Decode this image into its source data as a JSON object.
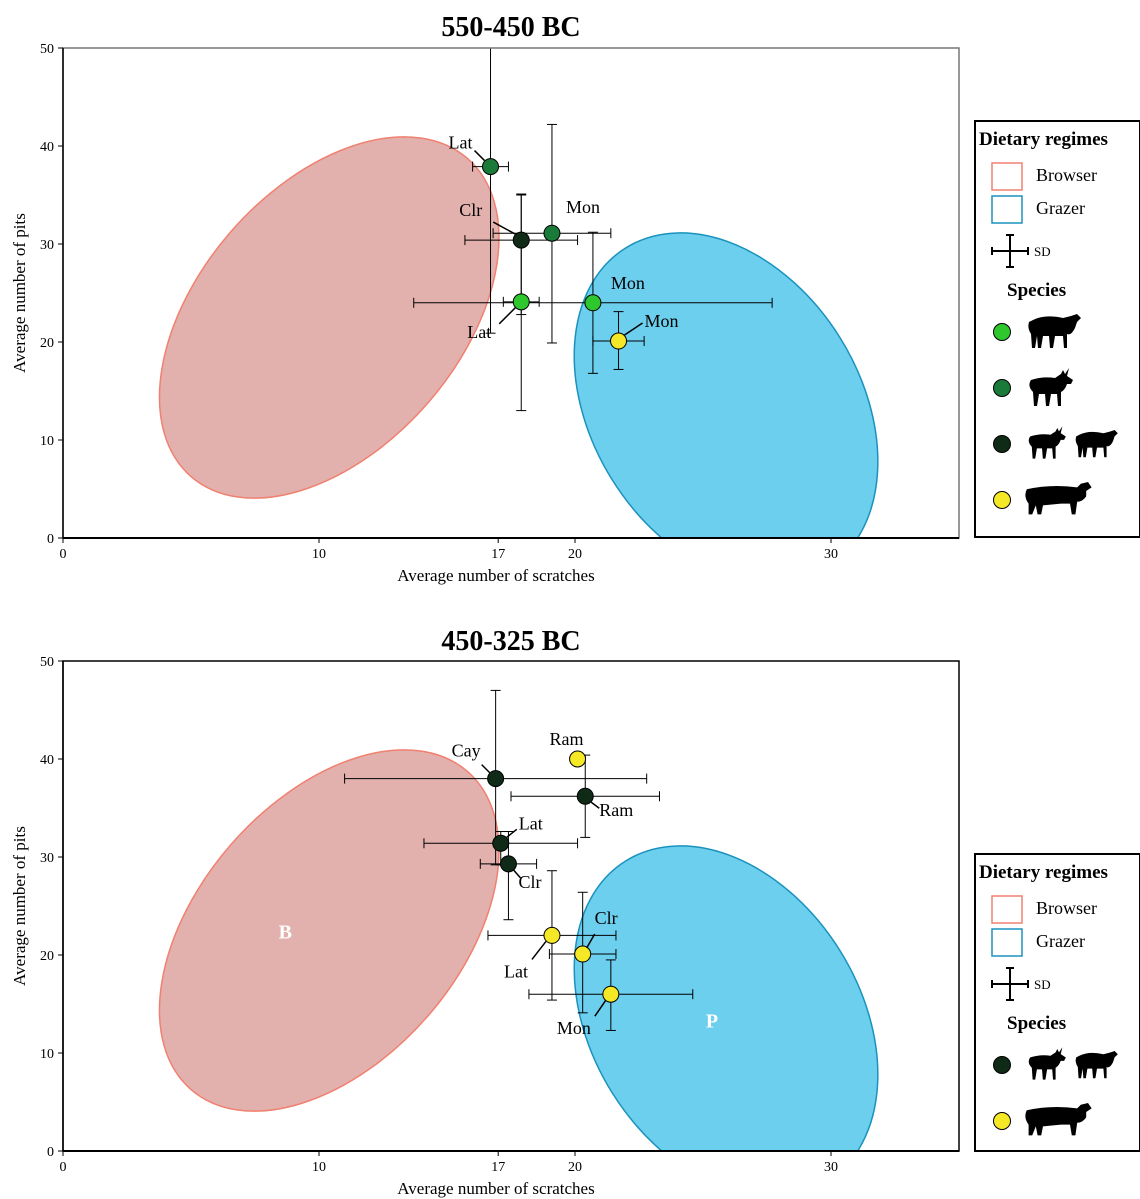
{
  "chart_data": [
    {
      "type": "scatter",
      "title": "550-450 BC",
      "xlabel": "Average number of scratches",
      "ylabel": "Average number of pits",
      "xlim": [
        0,
        35
      ],
      "ylim": [
        0,
        50
      ],
      "xticks": [
        0,
        10,
        17,
        20,
        30
      ],
      "yticks": [
        0,
        10,
        20,
        30,
        40,
        50
      ],
      "regions": [
        {
          "name": "Browser",
          "color": "#f08070",
          "fill": "#e3b1ad",
          "cx": 10.4,
          "cy": 22.5,
          "rx": 5.1,
          "ry": 21.5,
          "angle_deg": 41
        },
        {
          "name": "Grazer",
          "color": "#1a92bd",
          "fill": "#6ccfee",
          "cx": 25.9,
          "cy": 13.2,
          "rx": 7.4,
          "ry": 13.7,
          "angle_deg": 58
        }
      ],
      "points": [
        {
          "label": "Lat",
          "species": "goat",
          "color": "#1a7a3a",
          "x": 16.7,
          "y": 37.9,
          "xerr": 0.7,
          "yerr_low": 17.0,
          "yerr_high": 12.1
        },
        {
          "label": "Clr",
          "species": "sheep-goat",
          "color": "#0f2a16",
          "x": 17.9,
          "y": 30.4,
          "xerr": 2.2,
          "yerr_low": 7.6,
          "yerr_high": 4.6
        },
        {
          "label": "Mon",
          "species": "goat",
          "color": "#1a7a3a",
          "x": 19.1,
          "y": 31.1,
          "xerr": 2.3,
          "yerr_low": 11.2,
          "yerr_high": 11.1
        },
        {
          "label": "Lat",
          "species": "sheep",
          "color": "#2ec82e",
          "x": 17.9,
          "y": 24.1,
          "xerr": 0.7,
          "yerr_low": 11.1,
          "yerr_high": 11.0
        },
        {
          "label": "Mon",
          "species": "sheep",
          "color": "#2ec82e",
          "x": 20.7,
          "y": 24.0,
          "xerr": 7.0,
          "yerr_low": 7.2,
          "yerr_high": 7.2
        },
        {
          "label": "Mon",
          "species": "cattle",
          "color": "#f5e826",
          "x": 21.7,
          "y": 20.1,
          "xerr": 1.0,
          "yerr_low": 2.9,
          "yerr_high": 3.0
        }
      ],
      "legend": {
        "title": "Dietary regimes",
        "items": [
          "Browser",
          "Grazer"
        ],
        "sd_label": "SD",
        "species_title": "Species",
        "species": [
          {
            "color": "#2ec82e",
            "icon": "sheep-icon"
          },
          {
            "color": "#1a7a3a",
            "icon": "goat-icon"
          },
          {
            "color": "#0f2a16",
            "icon": "goat-sheep-icon"
          },
          {
            "color": "#f5e826",
            "icon": "cattle-icon"
          }
        ]
      }
    },
    {
      "type": "scatter",
      "title": "450-325 BC",
      "xlabel": "Average number of scratches",
      "ylabel": "Average number of pits",
      "xlim": [
        0,
        35
      ],
      "ylim": [
        0,
        50
      ],
      "xticks": [
        0,
        10,
        17,
        20,
        30
      ],
      "yticks": [
        0,
        10,
        20,
        30,
        40,
        50
      ],
      "regions": [
        {
          "name": "Browser",
          "label": "B",
          "color": "#f08070",
          "fill": "#e3b1ad",
          "cx": 10.4,
          "cy": 22.5,
          "rx": 5.1,
          "ry": 21.5,
          "angle_deg": 41
        },
        {
          "name": "Grazer",
          "label": "P",
          "color": "#1a92bd",
          "fill": "#6ccfee",
          "cx": 25.9,
          "cy": 13.2,
          "rx": 7.4,
          "ry": 13.7,
          "angle_deg": 58
        }
      ],
      "points": [
        {
          "label": "Cay",
          "species": "sheep-goat",
          "color": "#0f2a16",
          "x": 16.9,
          "y": 38.0,
          "xerr": 5.9,
          "yerr_low": 8.8,
          "yerr_high": 9.0
        },
        {
          "label": "Ram",
          "species": "cattle",
          "color": "#f5e826",
          "x": 20.1,
          "y": 40.0,
          "xerr": 0,
          "yerr_low": 0,
          "yerr_high": 0
        },
        {
          "label": "Ram",
          "species": "sheep-goat",
          "color": "#0f2a16",
          "x": 20.4,
          "y": 36.2,
          "xerr": 2.9,
          "yerr_low": 4.2,
          "yerr_high": 4.2
        },
        {
          "label": "Lat",
          "species": "sheep-goat",
          "color": "#0f2a16",
          "x": 17.1,
          "y": 31.4,
          "xerr": 3.0,
          "yerr_low": 2.2,
          "yerr_high": 1.2
        },
        {
          "label": "Clr",
          "species": "sheep-goat",
          "color": "#0f2a16",
          "x": 17.4,
          "y": 29.3,
          "xerr": 1.1,
          "yerr_low": 5.7,
          "yerr_high": 3.3
        },
        {
          "label": "Lat",
          "species": "cattle",
          "color": "#f5e826",
          "x": 19.1,
          "y": 22.0,
          "xerr": 2.5,
          "yerr_low": 6.6,
          "yerr_high": 6.6
        },
        {
          "label": "Clr",
          "species": "cattle",
          "color": "#f5e826",
          "x": 20.3,
          "y": 20.1,
          "xerr": 1.3,
          "yerr_low": 6.0,
          "yerr_high": 6.3
        },
        {
          "label": "Mon",
          "species": "cattle",
          "color": "#f5e826",
          "x": 21.4,
          "y": 16.0,
          "xerr": 3.2,
          "yerr_low": 3.7,
          "yerr_high": 3.5
        }
      ],
      "legend": {
        "title": "Dietary regimes",
        "items": [
          "Browser",
          "Grazer"
        ],
        "sd_label": "SD",
        "species_title": "Species",
        "species": [
          {
            "color": "#0f2a16",
            "icon": "goat-sheep-icon"
          },
          {
            "color": "#f5e826",
            "icon": "cattle-icon"
          }
        ]
      }
    }
  ]
}
